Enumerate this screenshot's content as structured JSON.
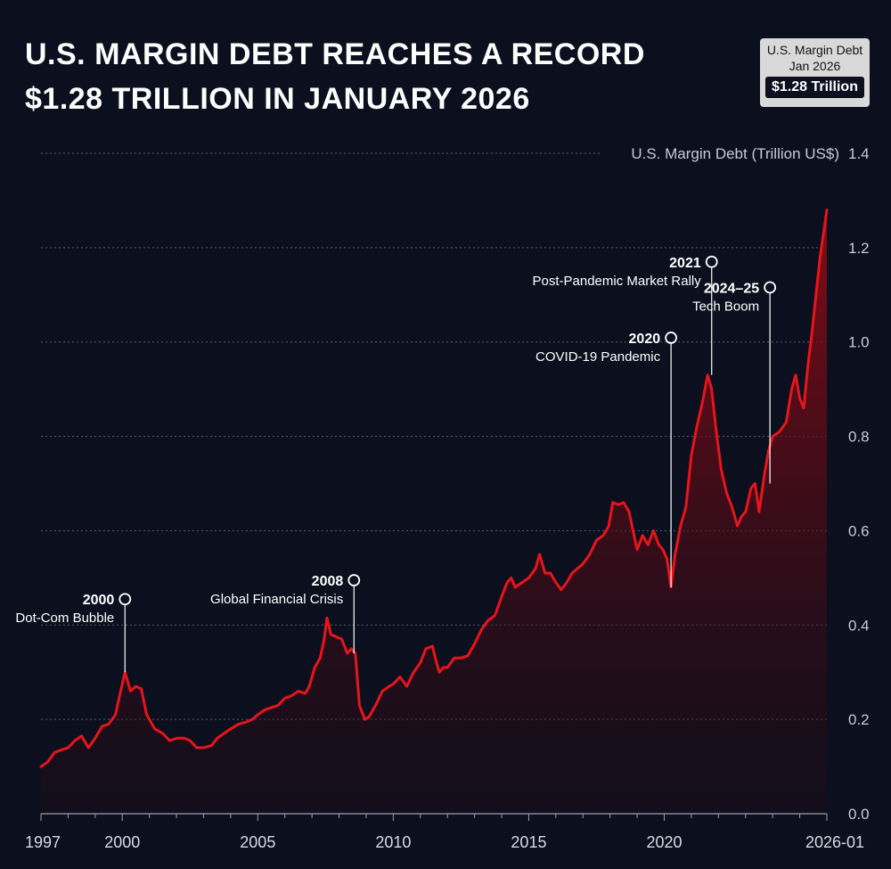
{
  "header": {
    "title_line1": "U.S. Margin Debt Reaches a Record",
    "title_line2": "$1.28 Trillion in January 2026"
  },
  "badge": {
    "label_line1": "U.S. Margin Debt",
    "label_line2": "Jan 2026",
    "value": "$1.28 Trillion"
  },
  "colors": {
    "background": "#0b0f1e",
    "line": "#e8141b",
    "fill": "#7a0a14"
  },
  "chart_data": {
    "type": "area",
    "title": "U.S. Margin Debt Reaches a Record $1.28 Trillion in January 2026",
    "ylabel": "U.S. Margin Debt (Trillion US$)",
    "xlabel": "",
    "xlim": [
      1997.0,
      2026.0
    ],
    "ylim": [
      0,
      1.4
    ],
    "grid": true,
    "x_ticks": [
      {
        "value": 1997,
        "label": "1997"
      },
      {
        "value": 2000,
        "label": "2000"
      },
      {
        "value": 2005,
        "label": "2005"
      },
      {
        "value": 2010,
        "label": "2010"
      },
      {
        "value": 2015,
        "label": "2015"
      },
      {
        "value": 2020,
        "label": "2020"
      },
      {
        "value": 2026,
        "label": "2026-01"
      }
    ],
    "y_ticks": [
      {
        "value": 0.0,
        "label": "0.0"
      },
      {
        "value": 0.2,
        "label": "0.2"
      },
      {
        "value": 0.4,
        "label": "0.4"
      },
      {
        "value": 0.6,
        "label": "0.6"
      },
      {
        "value": 0.8,
        "label": "0.8"
      },
      {
        "value": 1.0,
        "label": "1.0"
      },
      {
        "value": 1.2,
        "label": "1.2"
      },
      {
        "value": 1.4,
        "label": "1.4"
      }
    ],
    "series": [
      {
        "name": "U.S. Margin Debt",
        "points": [
          [
            1997.0,
            0.1
          ],
          [
            1997.25,
            0.11
          ],
          [
            1997.5,
            0.13
          ],
          [
            1997.75,
            0.135
          ],
          [
            1998.0,
            0.14
          ],
          [
            1998.25,
            0.155
          ],
          [
            1998.5,
            0.165
          ],
          [
            1998.75,
            0.14
          ],
          [
            1999.0,
            0.16
          ],
          [
            1999.25,
            0.185
          ],
          [
            1999.5,
            0.19
          ],
          [
            1999.75,
            0.21
          ],
          [
            1999.9,
            0.25
          ],
          [
            2000.1,
            0.3
          ],
          [
            2000.3,
            0.26
          ],
          [
            2000.5,
            0.27
          ],
          [
            2000.7,
            0.265
          ],
          [
            2000.9,
            0.21
          ],
          [
            2001.2,
            0.18
          ],
          [
            2001.5,
            0.17
          ],
          [
            2001.75,
            0.155
          ],
          [
            2002.0,
            0.16
          ],
          [
            2002.3,
            0.16
          ],
          [
            2002.5,
            0.155
          ],
          [
            2002.75,
            0.14
          ],
          [
            2003.0,
            0.14
          ],
          [
            2003.3,
            0.145
          ],
          [
            2003.5,
            0.16
          ],
          [
            2003.75,
            0.17
          ],
          [
            2004.0,
            0.18
          ],
          [
            2004.3,
            0.19
          ],
          [
            2004.6,
            0.195
          ],
          [
            2004.8,
            0.2
          ],
          [
            2005.0,
            0.21
          ],
          [
            2005.25,
            0.22
          ],
          [
            2005.5,
            0.225
          ],
          [
            2005.75,
            0.23
          ],
          [
            2006.0,
            0.245
          ],
          [
            2006.25,
            0.25
          ],
          [
            2006.5,
            0.26
          ],
          [
            2006.75,
            0.255
          ],
          [
            2006.9,
            0.27
          ],
          [
            2007.1,
            0.31
          ],
          [
            2007.3,
            0.33
          ],
          [
            2007.45,
            0.37
          ],
          [
            2007.55,
            0.415
          ],
          [
            2007.7,
            0.38
          ],
          [
            2007.9,
            0.375
          ],
          [
            2008.1,
            0.37
          ],
          [
            2008.3,
            0.34
          ],
          [
            2008.45,
            0.35
          ],
          [
            2008.6,
            0.34
          ],
          [
            2008.75,
            0.23
          ],
          [
            2008.95,
            0.2
          ],
          [
            2009.1,
            0.205
          ],
          [
            2009.35,
            0.23
          ],
          [
            2009.6,
            0.26
          ],
          [
            2009.85,
            0.27
          ],
          [
            2010.0,
            0.275
          ],
          [
            2010.25,
            0.29
          ],
          [
            2010.5,
            0.27
          ],
          [
            2010.75,
            0.3
          ],
          [
            2011.0,
            0.32
          ],
          [
            2011.2,
            0.35
          ],
          [
            2011.45,
            0.355
          ],
          [
            2011.55,
            0.33
          ],
          [
            2011.7,
            0.3
          ],
          [
            2011.85,
            0.31
          ],
          [
            2012.0,
            0.31
          ],
          [
            2012.25,
            0.33
          ],
          [
            2012.5,
            0.33
          ],
          [
            2012.75,
            0.335
          ],
          [
            2013.0,
            0.36
          ],
          [
            2013.25,
            0.39
          ],
          [
            2013.5,
            0.41
          ],
          [
            2013.75,
            0.42
          ],
          [
            2014.0,
            0.46
          ],
          [
            2014.2,
            0.49
          ],
          [
            2014.35,
            0.5
          ],
          [
            2014.5,
            0.48
          ],
          [
            2014.75,
            0.49
          ],
          [
            2015.0,
            0.5
          ],
          [
            2015.25,
            0.52
          ],
          [
            2015.4,
            0.55
          ],
          [
            2015.6,
            0.51
          ],
          [
            2015.8,
            0.51
          ],
          [
            2016.0,
            0.49
          ],
          [
            2016.2,
            0.475
          ],
          [
            2016.4,
            0.49
          ],
          [
            2016.6,
            0.51
          ],
          [
            2016.8,
            0.52
          ],
          [
            2017.0,
            0.53
          ],
          [
            2017.25,
            0.55
          ],
          [
            2017.5,
            0.58
          ],
          [
            2017.75,
            0.59
          ],
          [
            2017.95,
            0.61
          ],
          [
            2018.1,
            0.66
          ],
          [
            2018.3,
            0.655
          ],
          [
            2018.5,
            0.66
          ],
          [
            2018.7,
            0.64
          ],
          [
            2018.85,
            0.6
          ],
          [
            2019.0,
            0.56
          ],
          [
            2019.2,
            0.59
          ],
          [
            2019.4,
            0.57
          ],
          [
            2019.6,
            0.6
          ],
          [
            2019.8,
            0.57
          ],
          [
            2019.95,
            0.56
          ],
          [
            2020.1,
            0.54
          ],
          [
            2020.25,
            0.48
          ],
          [
            2020.4,
            0.55
          ],
          [
            2020.6,
            0.61
          ],
          [
            2020.8,
            0.65
          ],
          [
            2021.0,
            0.76
          ],
          [
            2021.2,
            0.82
          ],
          [
            2021.4,
            0.87
          ],
          [
            2021.6,
            0.93
          ],
          [
            2021.75,
            0.9
          ],
          [
            2021.9,
            0.82
          ],
          [
            2022.1,
            0.73
          ],
          [
            2022.3,
            0.68
          ],
          [
            2022.5,
            0.65
          ],
          [
            2022.7,
            0.61
          ],
          [
            2022.85,
            0.63
          ],
          [
            2023.0,
            0.64
          ],
          [
            2023.2,
            0.69
          ],
          [
            2023.35,
            0.7
          ],
          [
            2023.5,
            0.64
          ],
          [
            2023.7,
            0.72
          ],
          [
            2023.85,
            0.77
          ],
          [
            2024.0,
            0.8
          ],
          [
            2024.25,
            0.81
          ],
          [
            2024.5,
            0.83
          ],
          [
            2024.7,
            0.9
          ],
          [
            2024.85,
            0.93
          ],
          [
            2025.0,
            0.88
          ],
          [
            2025.15,
            0.86
          ],
          [
            2025.3,
            0.95
          ],
          [
            2025.45,
            1.02
          ],
          [
            2025.6,
            1.1
          ],
          [
            2025.75,
            1.18
          ],
          [
            2025.9,
            1.24
          ],
          [
            2026.0,
            1.28
          ]
        ]
      }
    ],
    "annotations": [
      {
        "x": 2000.1,
        "y": 0.3,
        "year": "2000",
        "label": "Dot-Com Bubble",
        "label_side": "left"
      },
      {
        "x": 2008.55,
        "y": 0.34,
        "year": "2008",
        "label": "Global Financial Crisis",
        "label_side": "left"
      },
      {
        "x": 2020.25,
        "y": 0.48,
        "year": "2020",
        "label": "COVID-19 Pandemic",
        "label_side": "left"
      },
      {
        "x": 2021.75,
        "y": 0.93,
        "year": "2021",
        "label": "Post-Pandemic Market Rally",
        "label_side": "left"
      },
      {
        "x": 2023.9,
        "y": 0.7,
        "year": "2024–25",
        "label": "Tech Boom",
        "label_side": "left"
      }
    ]
  }
}
